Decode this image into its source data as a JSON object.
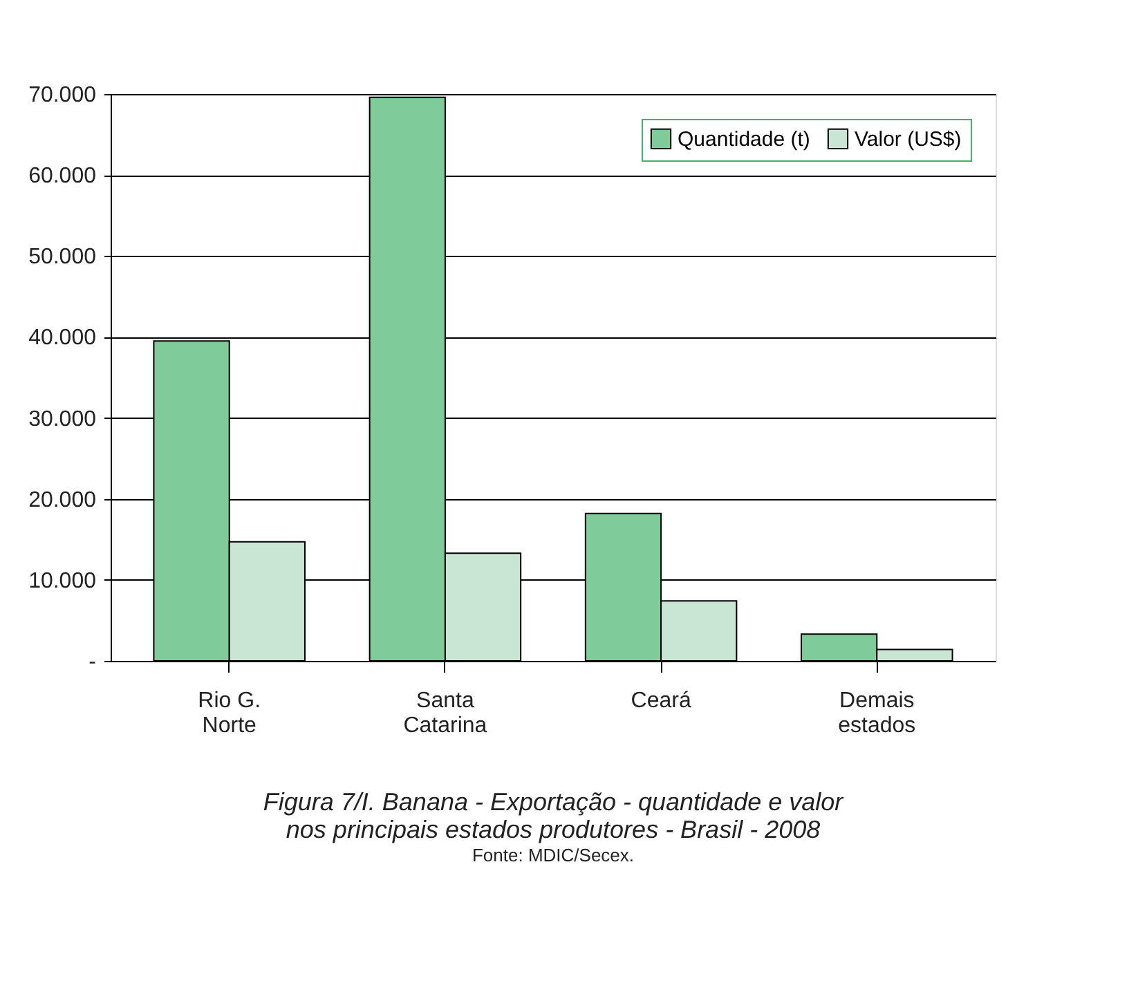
{
  "chart_data": {
    "type": "bar",
    "title": "Figura 7/I. Banana - Exportação - quantidade e valor\nnos principais estados produtores - Brasil - 2008",
    "categories": [
      "Rio G.\nNorte",
      "Santa\nCatarina",
      "Ceará",
      "Demais\nestados"
    ],
    "series": [
      {
        "name": "Quantidade (t)",
        "color": "#7fcb9a",
        "values": [
          39500,
          69600,
          18200,
          3300
        ]
      },
      {
        "name": "Valor (US$)",
        "color": "#c9e6d4",
        "values": [
          14700,
          13300,
          7400,
          1400
        ]
      }
    ],
    "ylim": [
      0,
      70000
    ],
    "yticks": [
      {
        "value": 0,
        "label": "-"
      },
      {
        "value": 10000,
        "label": "10.000"
      },
      {
        "value": 20000,
        "label": "20.000"
      },
      {
        "value": 30000,
        "label": "30.000"
      },
      {
        "value": 40000,
        "label": "40.000"
      },
      {
        "value": 50000,
        "label": "50.000"
      },
      {
        "value": 60000,
        "label": "60.000"
      },
      {
        "value": 70000,
        "label": "70.000"
      }
    ],
    "grid": "y",
    "legend": "top right",
    "annotations": [
      "Fonte: MDIC/Secex."
    ]
  }
}
